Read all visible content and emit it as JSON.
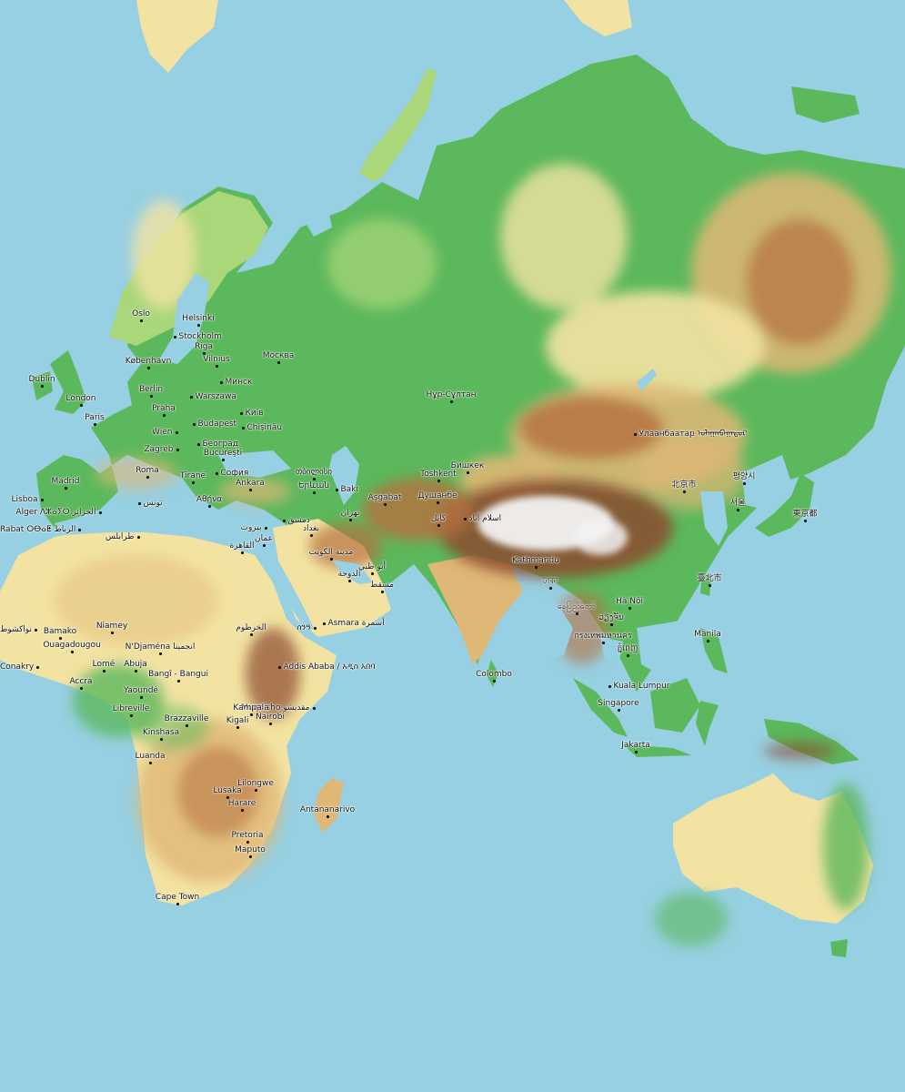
{
  "colors": {
    "ocean": "#97d0e2",
    "lowland": "#5cb85c",
    "plain": "#a9d77a",
    "upland": "#f3e3a2",
    "hill": "#dfb776",
    "mountain": "#b5703f",
    "highmountain": "#8c4a2e",
    "snow": "#f2f2f2"
  },
  "icons": {
    "city": "city-dot-icon"
  },
  "cities": [
    {
      "id": "oslo",
      "label": "Oslo"
    },
    {
      "id": "stockholm",
      "label": "Stockholm"
    },
    {
      "id": "helsinki",
      "label": "Helsinki"
    },
    {
      "id": "riga",
      "label": "Riga"
    },
    {
      "id": "vilnius",
      "label": "Vilnius"
    },
    {
      "id": "kobenhavn",
      "label": "København"
    },
    {
      "id": "minsk",
      "label": "Минск"
    },
    {
      "id": "moskva",
      "label": "Москва"
    },
    {
      "id": "dublin",
      "label": "Dublin"
    },
    {
      "id": "berlin",
      "label": "Berlin"
    },
    {
      "id": "warszawa",
      "label": "Warszawa"
    },
    {
      "id": "london",
      "label": "London"
    },
    {
      "id": "kyiv",
      "label": "Київ"
    },
    {
      "id": "praha",
      "label": "Praha"
    },
    {
      "id": "paris",
      "label": "Paris"
    },
    {
      "id": "budapest",
      "label": "Budapest"
    },
    {
      "id": "chisinau",
      "label": "Chişinău"
    },
    {
      "id": "wien",
      "label": "Wien"
    },
    {
      "id": "beograd",
      "label": "Београд"
    },
    {
      "id": "zagreb",
      "label": "Zagreb"
    },
    {
      "id": "bucuresti",
      "label": "Bucureşti"
    },
    {
      "id": "roma",
      "label": "Roma"
    },
    {
      "id": "sofia",
      "label": "София"
    },
    {
      "id": "tirane",
      "label": "Tiranë"
    },
    {
      "id": "madrid",
      "label": "Madrid"
    },
    {
      "id": "lisboa",
      "label": "Lisboa"
    },
    {
      "id": "athina",
      "label": "Αθήνα"
    },
    {
      "id": "ankara",
      "label": "Ankara"
    },
    {
      "id": "tbilisi",
      "label": "თბილისი"
    },
    {
      "id": "yerevan",
      "label": "Երևան"
    },
    {
      "id": "baki",
      "label": "Bakı"
    },
    {
      "id": "tunis",
      "label": "تونس"
    },
    {
      "id": "alger",
      "label": "Alger ⴷⵣⴰⵢⵔ الجزائر"
    },
    {
      "id": "rabat",
      "label": "Rabat ⵔⴱⴰⵟ الرباط"
    },
    {
      "id": "beirut",
      "label": "بيروت"
    },
    {
      "id": "dimashq",
      "label": "دمشق"
    },
    {
      "id": "baghdad",
      "label": "بغداد"
    },
    {
      "id": "tehran",
      "label": "تهران"
    },
    {
      "id": "ashgabat",
      "label": "Aşgabat"
    },
    {
      "id": "tarabulus",
      "label": "طرابلس"
    },
    {
      "id": "amman",
      "label": "عمان"
    },
    {
      "id": "qahira",
      "label": "القاهرة"
    },
    {
      "id": "kuwait",
      "label": "مدينة الكويت"
    },
    {
      "id": "doha",
      "label": "الدوحة"
    },
    {
      "id": "abudhabi",
      "label": "أبو ظبي"
    },
    {
      "id": "muscat",
      "label": "مسقط"
    },
    {
      "id": "nursultan",
      "label": "Нұр-Сұлтан"
    },
    {
      "id": "bishkek",
      "label": "Бишкек"
    },
    {
      "id": "toshkent",
      "label": "Toshkent"
    },
    {
      "id": "dushanbe",
      "label": "Душанбе"
    },
    {
      "id": "kabul",
      "label": "کابل"
    },
    {
      "id": "islamabad",
      "label": "اسلام آباد"
    },
    {
      "id": "ulaanbaatar",
      "label": "Улаанбаатар ᠤᠯᠠᠭᠠᠨᠪᠠᠭᠠᠲᠤᠷ"
    },
    {
      "id": "beijing",
      "label": "北京市"
    },
    {
      "id": "seoul",
      "label": "서울"
    },
    {
      "id": "pyongyang",
      "label": "평양시"
    },
    {
      "id": "tokyo",
      "label": "東京都"
    },
    {
      "id": "taipei",
      "label": "臺北市"
    },
    {
      "id": "kathmandu",
      "label": "Kathmandu"
    },
    {
      "id": "dhaka",
      "label": "ঢাকা"
    },
    {
      "id": "naypyidaw",
      "label": "နေပြည်တော်"
    },
    {
      "id": "vientiane",
      "label": "ວຽງຈັນ"
    },
    {
      "id": "hanoi",
      "label": "Hà Nội"
    },
    {
      "id": "bangkok",
      "label": "กรุงเทพมหานคร"
    },
    {
      "id": "phnompenh",
      "label": "ភ្នំពេញ"
    },
    {
      "id": "manila",
      "label": "Manila"
    },
    {
      "id": "colombo",
      "label": "Colombo"
    },
    {
      "id": "kualalumpur",
      "label": "Kuala Lumpur"
    },
    {
      "id": "singapore",
      "label": "Singapore"
    },
    {
      "id": "jakarta",
      "label": "Jakarta"
    },
    {
      "id": "asmara",
      "label": "Asmara أسمرة"
    },
    {
      "id": "sanaa",
      "label": "ሰንዓ"
    },
    {
      "id": "khartoum",
      "label": "الخرطوم"
    },
    {
      "id": "addisababa",
      "label": "Addis Ababa / አዲስ አበባ"
    },
    {
      "id": "mogadishu",
      "label": "Muqdisho مقديشو"
    },
    {
      "id": "nouakchott",
      "label": "نواكشوط"
    },
    {
      "id": "bamako",
      "label": "Bamako"
    },
    {
      "id": "niamey",
      "label": "Niamey"
    },
    {
      "id": "ouagadougou",
      "label": "Ouagadougou"
    },
    {
      "id": "ndjamena",
      "label": "N'Djaména انجمينا"
    },
    {
      "id": "conakry",
      "label": "Conakry"
    },
    {
      "id": "lome",
      "label": "Lomé"
    },
    {
      "id": "abuja",
      "label": "Abuja"
    },
    {
      "id": "accra",
      "label": "Accra"
    },
    {
      "id": "bangui",
      "label": "Bangî - Bangui"
    },
    {
      "id": "yaounde",
      "label": "Yaoundé"
    },
    {
      "id": "kampala",
      "label": "Kampala"
    },
    {
      "id": "nairobi",
      "label": "Nairobi"
    },
    {
      "id": "kigali",
      "label": "Kigali"
    },
    {
      "id": "libreville",
      "label": "Libreville"
    },
    {
      "id": "brazzaville",
      "label": "Brazzaville"
    },
    {
      "id": "kinshasa",
      "label": "Kinshasa"
    },
    {
      "id": "luanda",
      "label": "Luanda"
    },
    {
      "id": "lilongwe",
      "label": "Lilongwe"
    },
    {
      "id": "lusaka",
      "label": "Lusaka"
    },
    {
      "id": "harare",
      "label": "Harare"
    },
    {
      "id": "antananarivo",
      "label": "Antananarivo"
    },
    {
      "id": "pretoria",
      "label": "Pretoria"
    },
    {
      "id": "maputo",
      "label": "Maputo"
    },
    {
      "id": "capetown",
      "label": "Cape Town"
    }
  ]
}
